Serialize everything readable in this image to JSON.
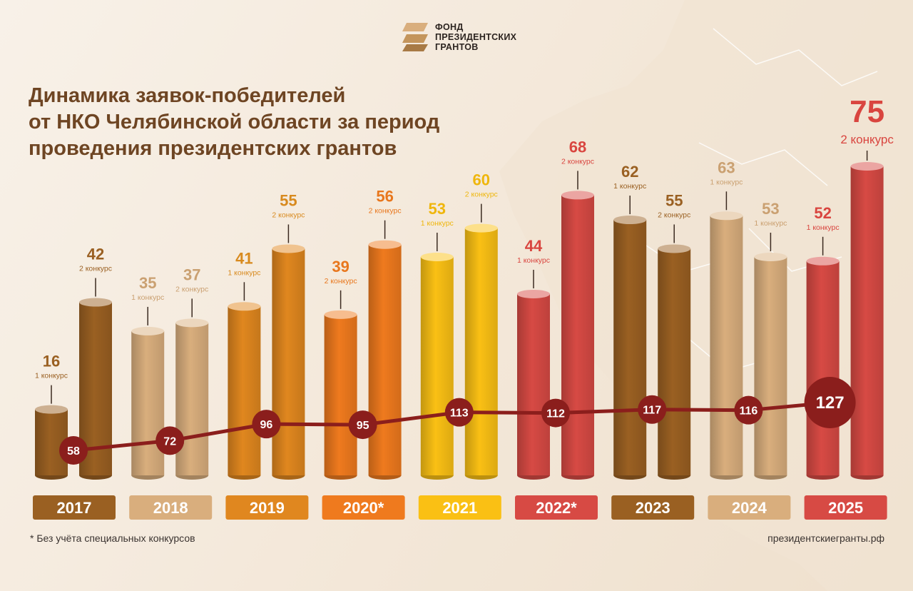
{
  "logo": {
    "lines": [
      "ФОНД",
      "ПРЕЗИДЕНТСКИХ",
      "ГРАНТОВ"
    ]
  },
  "title": {
    "lines": [
      "Динамика заявок-победителей",
      "от НКО Челябинской области за период",
      "проведения президентских грантов"
    ]
  },
  "footnote": "* Без учёта специальных конкурсов",
  "website": "президентскиегранты.рф",
  "chart_data": {
    "type": "bar",
    "ylim": [
      0,
      80
    ],
    "categories": [
      "2017",
      "2018",
      "2019",
      "2020*",
      "2021",
      "2022*",
      "2023",
      "2024",
      "2025"
    ],
    "year_colors": [
      "#9a6022",
      "#d9ae7d",
      "#e0871f",
      "#ef7a1e",
      "#fac014",
      "#d74a44",
      "#9a6022",
      "#d9ae7d",
      "#d74a44"
    ],
    "label_colors": [
      "#9a6022",
      "#caa071",
      "#d88a1e",
      "#e8771d",
      "#efb60c",
      "#d9453f",
      "#9a6022",
      "#caa071",
      "#d9453f"
    ],
    "bars": [
      {
        "year_index": 0,
        "value": 16,
        "label": "1 конкурс"
      },
      {
        "year_index": 0,
        "value": 42,
        "label": "2 конкурс"
      },
      {
        "year_index": 1,
        "value": 35,
        "label": "1 конкурс"
      },
      {
        "year_index": 1,
        "value": 37,
        "label": "2 конкурс"
      },
      {
        "year_index": 2,
        "value": 41,
        "label": "1 конкурс"
      },
      {
        "year_index": 2,
        "value": 55,
        "label": "2 конкурс"
      },
      {
        "year_index": 3,
        "value": 39,
        "label": "2 конкурс"
      },
      {
        "year_index": 3,
        "value": 56,
        "label": "2 конкурс"
      },
      {
        "year_index": 4,
        "value": 53,
        "label": "1 конкурс"
      },
      {
        "year_index": 4,
        "value": 60,
        "label": "2 конкурс"
      },
      {
        "year_index": 5,
        "value": 44,
        "label": "1 конкурс"
      },
      {
        "year_index": 5,
        "value": 68,
        "label": "2 конкурс"
      },
      {
        "year_index": 6,
        "value": 62,
        "label": "1 конкурс"
      },
      {
        "year_index": 6,
        "value": 55,
        "label": "2 конкурс"
      },
      {
        "year_index": 7,
        "value": 63,
        "label": "1 конкурс"
      },
      {
        "year_index": 7,
        "value": 53,
        "label": "1 конкурс"
      },
      {
        "year_index": 8,
        "value": 52,
        "label": "1 конкурс"
      },
      {
        "year_index": 8,
        "value": 75,
        "label": "2 конкурс"
      }
    ],
    "totals": [
      58,
      72,
      96,
      95,
      113,
      112,
      117,
      116,
      127
    ],
    "line_color": "#8b1e1c"
  }
}
